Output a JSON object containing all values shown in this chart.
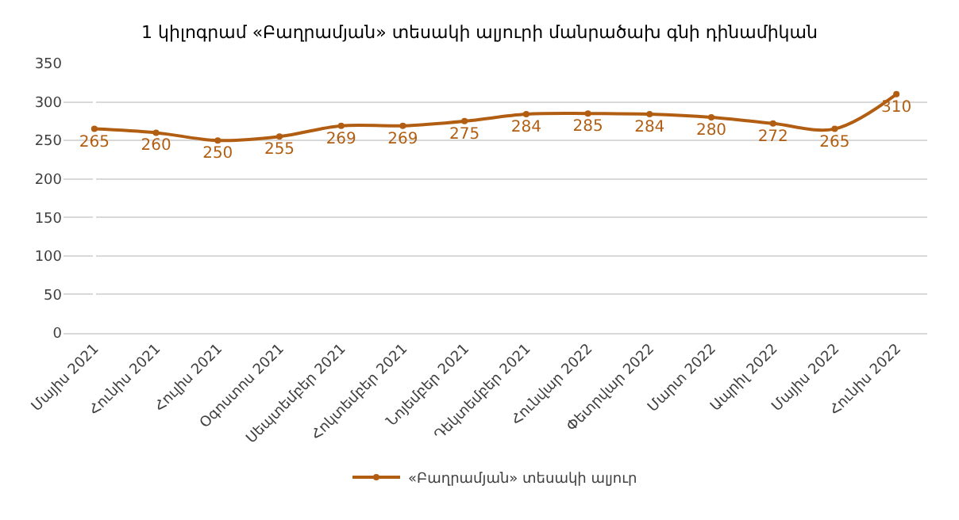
{
  "chart_data": {
    "type": "line",
    "title": "1 կիլոգրամ «Բաղրամյան» տեսակի ալյուրի մանրածախ գնի դինամիկան",
    "categories": [
      "Մայիս 2021",
      "Հունիս 2021",
      "Հուլիս 2021",
      "Օգոստոս 2021",
      "Սեպտեմբեր 2021",
      "Հոկտեմբեր 2021",
      "Նոյեմբեր 2021",
      "Դեկտեմբեր 2021",
      "Հունվար 2022",
      "Փետրվար 2022",
      "Մարտ 2022",
      "Ապրիլ 2022",
      "Մայիս 2022",
      "Հունիս 2022"
    ],
    "series": [
      {
        "name": "«Բաղրամյան» տեսակի ալյուր",
        "color": "#b25e12",
        "values": [
          265,
          260,
          250,
          255,
          269,
          269,
          275,
          284,
          285,
          284,
          280,
          272,
          265,
          310
        ]
      }
    ],
    "ylim": [
      0,
      350
    ],
    "yticks": [
      0,
      50,
      100,
      150,
      200,
      250,
      300,
      350
    ],
    "grid": "y",
    "legend": "bottom",
    "marker": "circle",
    "line_style": "solid",
    "data_labels": true
  }
}
